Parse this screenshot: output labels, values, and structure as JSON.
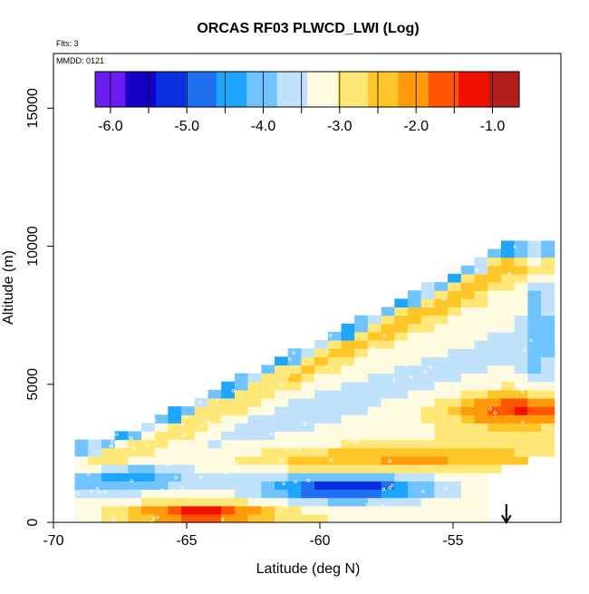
{
  "chart_data": {
    "type": "heatmap",
    "title": "ORCAS RF03 PLWCD_LWI (Log)",
    "annotations": {
      "flights": "Flts: 3",
      "date": "MMDD: 0121"
    },
    "xlabel": "Latitude (deg N)",
    "ylabel": "Altitude (m)",
    "xlim": [
      -70,
      -51
    ],
    "ylim": [
      0,
      17000
    ],
    "x_ticks": [
      -70,
      -65,
      -60,
      -55
    ],
    "y_ticks": [
      0,
      5000,
      10000,
      15000
    ],
    "colorbar": {
      "ticks": [
        "-6.0",
        "-5.0",
        "-4.0",
        "-3.0",
        "-2.0",
        "-1.0"
      ],
      "range": [
        -6.2,
        -0.65
      ],
      "placement": "top inside plot",
      "colors": [
        "#6b1cf0",
        "#1600c8",
        "#0b2fe0",
        "#1f6ff0",
        "#1ea6ff",
        "#6fc4ff",
        "#c0e2fb",
        "#fffbe0",
        "#ffe878",
        "#ffc62a",
        "#ff9a0a",
        "#ff5500",
        "#f01000",
        "#b21e1e"
      ]
    },
    "marker_arrow_latitude": -53,
    "grid": false,
    "data_summary": {
      "latitude_range": [
        -69.2,
        -51.6
      ],
      "altitude_range": [
        0,
        10500
      ],
      "value_range_log10": [
        -6.0,
        -1.0
      ],
      "highest_values": "near surface around -66 to -63 and near 4000 m poleward of -55",
      "lowest_values": "near 1200 m between -62 and -57"
    }
  }
}
